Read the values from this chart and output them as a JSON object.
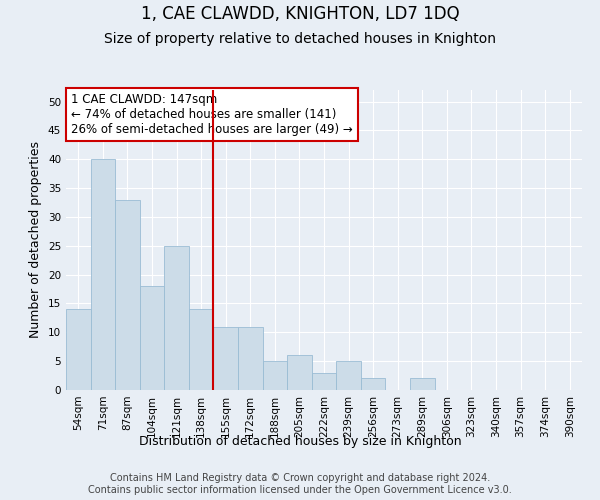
{
  "title": "1, CAE CLAWDD, KNIGHTON, LD7 1DQ",
  "subtitle": "Size of property relative to detached houses in Knighton",
  "xlabel": "Distribution of detached houses by size in Knighton",
  "ylabel": "Number of detached properties",
  "bar_labels": [
    "54sqm",
    "71sqm",
    "87sqm",
    "104sqm",
    "121sqm",
    "138sqm",
    "155sqm",
    "172sqm",
    "188sqm",
    "205sqm",
    "222sqm",
    "239sqm",
    "256sqm",
    "273sqm",
    "289sqm",
    "306sqm",
    "323sqm",
    "340sqm",
    "357sqm",
    "374sqm",
    "390sqm"
  ],
  "bar_values": [
    14,
    40,
    33,
    18,
    25,
    14,
    11,
    11,
    5,
    6,
    3,
    5,
    2,
    0,
    2,
    0,
    0,
    0,
    0,
    0,
    0
  ],
  "bar_color": "#ccdce8",
  "bar_edge_color": "#9abcd4",
  "background_color": "#e8eef5",
  "grid_color": "#ffffff",
  "vline_x": 6,
  "vline_color": "#cc0000",
  "annotation_text": "1 CAE CLAWDD: 147sqm\n← 74% of detached houses are smaller (141)\n26% of semi-detached houses are larger (49) →",
  "annotation_box_facecolor": "#ffffff",
  "annotation_box_edgecolor": "#cc0000",
  "ylim": [
    0,
    52
  ],
  "yticks": [
    0,
    5,
    10,
    15,
    20,
    25,
    30,
    35,
    40,
    45,
    50
  ],
  "footer": "Contains HM Land Registry data © Crown copyright and database right 2024.\nContains public sector information licensed under the Open Government Licence v3.0.",
  "title_fontsize": 12,
  "subtitle_fontsize": 10,
  "axis_label_fontsize": 9,
  "tick_fontsize": 7.5,
  "annotation_fontsize": 8.5,
  "footer_fontsize": 7
}
